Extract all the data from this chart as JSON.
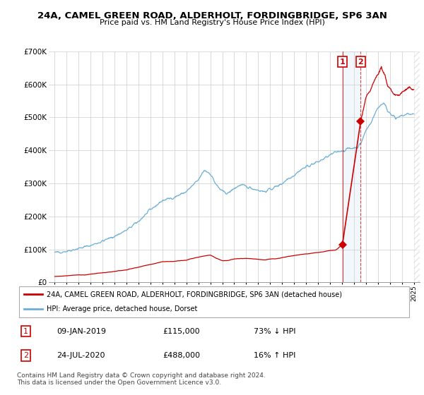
{
  "title": "24A, CAMEL GREEN ROAD, ALDERHOLT, FORDINGBRIDGE, SP6 3AN",
  "subtitle": "Price paid vs. HM Land Registry's House Price Index (HPI)",
  "legend_line1": "24A, CAMEL GREEN ROAD, ALDERHOLT, FORDINGBRIDGE, SP6 3AN (detached house)",
  "legend_line2": "HPI: Average price, detached house, Dorset",
  "footer": "Contains HM Land Registry data © Crown copyright and database right 2024.\nThis data is licensed under the Open Government Licence v3.0.",
  "transaction1_date": "09-JAN-2019",
  "transaction1_price": "£115,000",
  "transaction1_hpi": "73% ↓ HPI",
  "transaction2_date": "24-JUL-2020",
  "transaction2_price": "£488,000",
  "transaction2_hpi": "16% ↑ HPI",
  "hpi_color": "#6baed6",
  "price_color": "#cc0000",
  "ylim_min": 0,
  "ylim_max": 700000,
  "yticks": [
    0,
    100000,
    200000,
    300000,
    400000,
    500000,
    600000,
    700000
  ],
  "transaction1_x": 2019.04,
  "transaction1_y": 115000,
  "transaction2_x": 2020.56,
  "transaction2_y": 488000,
  "xmin": 1994.5,
  "xmax": 2025.5
}
